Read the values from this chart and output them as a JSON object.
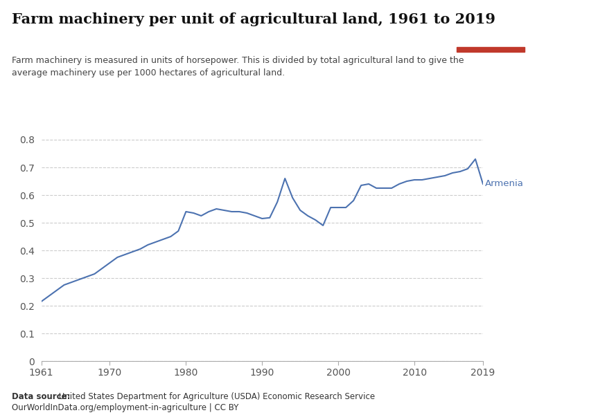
{
  "title": "Farm machinery per unit of agricultural land, 1961 to 2019",
  "subtitle_line1": "Farm machinery is measured in units of horsepower. This is divided by total agricultural land to give the",
  "subtitle_line2": "average machinery use per 1000 hectares of agricultural land.",
  "datasource_bold": "Data source:",
  "datasource_text": " United States Department for Agriculture (USDA) Economic Research Service",
  "datasource_url": "OurWorldInData.org/employment-in-agriculture | CC BY",
  "line_color": "#4c72b0",
  "background_color": "#ffffff",
  "label": "Armenia",
  "years": [
    1961,
    1962,
    1963,
    1964,
    1965,
    1966,
    1967,
    1968,
    1969,
    1970,
    1971,
    1972,
    1973,
    1974,
    1975,
    1976,
    1977,
    1978,
    1979,
    1980,
    1981,
    1982,
    1983,
    1984,
    1985,
    1986,
    1987,
    1988,
    1989,
    1990,
    1991,
    1992,
    1993,
    1994,
    1995,
    1996,
    1997,
    1998,
    1999,
    2000,
    2001,
    2002,
    2003,
    2004,
    2005,
    2006,
    2007,
    2008,
    2009,
    2010,
    2011,
    2012,
    2013,
    2014,
    2015,
    2016,
    2017,
    2018,
    2019
  ],
  "values": [
    0.215,
    0.235,
    0.255,
    0.275,
    0.285,
    0.295,
    0.305,
    0.315,
    0.335,
    0.355,
    0.375,
    0.385,
    0.395,
    0.405,
    0.42,
    0.43,
    0.44,
    0.45,
    0.47,
    0.54,
    0.535,
    0.525,
    0.54,
    0.55,
    0.545,
    0.54,
    0.54,
    0.535,
    0.525,
    0.515,
    0.518,
    0.575,
    0.66,
    0.59,
    0.545,
    0.525,
    0.51,
    0.49,
    0.555,
    0.555,
    0.555,
    0.58,
    0.635,
    0.64,
    0.625,
    0.625,
    0.625,
    0.64,
    0.65,
    0.655,
    0.655,
    0.66,
    0.665,
    0.67,
    0.68,
    0.685,
    0.695,
    0.73,
    0.64
  ],
  "ylim": [
    0,
    0.84
  ],
  "yticks": [
    0,
    0.1,
    0.2,
    0.3,
    0.4,
    0.5,
    0.6,
    0.7,
    0.8
  ],
  "ytick_labels": [
    "0",
    "0.1",
    "0.2",
    "0.3",
    "0.4",
    "0.5",
    "0.6",
    "0.7",
    "0.8"
  ],
  "xticks": [
    1961,
    1970,
    1980,
    1990,
    2000,
    2010,
    2019
  ],
  "xtick_labels": [
    "1961",
    "1970",
    "1980",
    "1990",
    "2000",
    "2010",
    "2019"
  ],
  "owid_box_color": "#1a3a5c",
  "owid_red": "#c0392b"
}
